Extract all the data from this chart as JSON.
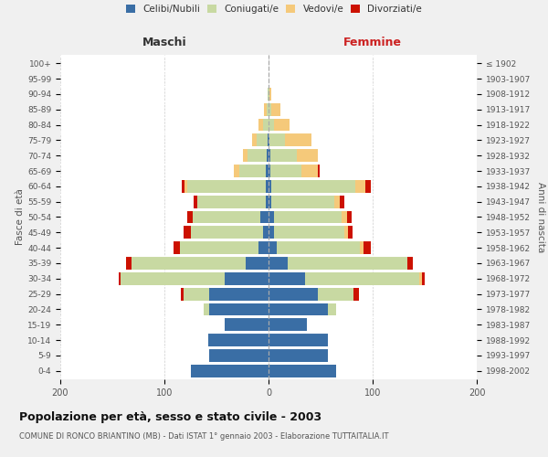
{
  "age_groups": [
    "0-4",
    "5-9",
    "10-14",
    "15-19",
    "20-24",
    "25-29",
    "30-34",
    "35-39",
    "40-44",
    "45-49",
    "50-54",
    "55-59",
    "60-64",
    "65-69",
    "70-74",
    "75-79",
    "80-84",
    "85-89",
    "90-94",
    "95-99",
    "100+"
  ],
  "birth_years": [
    "1998-2002",
    "1993-1997",
    "1988-1992",
    "1983-1987",
    "1978-1982",
    "1973-1977",
    "1968-1972",
    "1963-1967",
    "1958-1962",
    "1953-1957",
    "1948-1952",
    "1943-1947",
    "1938-1942",
    "1933-1937",
    "1928-1932",
    "1923-1927",
    "1918-1922",
    "1913-1917",
    "1908-1912",
    "1903-1907",
    "≤ 1902"
  ],
  "maschi": {
    "celibi": [
      75,
      57,
      58,
      42,
      57,
      57,
      42,
      22,
      10,
      5,
      8,
      3,
      3,
      3,
      2,
      1,
      0,
      0,
      0,
      0,
      0
    ],
    "coniugati": [
      0,
      0,
      0,
      0,
      5,
      25,
      100,
      110,
      75,
      70,
      65,
      65,
      75,
      25,
      18,
      10,
      5,
      2,
      1,
      0,
      0
    ],
    "vedovi": [
      0,
      0,
      0,
      0,
      0,
      0,
      0,
      0,
      0,
      0,
      0,
      0,
      3,
      5,
      5,
      5,
      5,
      2,
      0,
      0,
      0
    ],
    "divorziati": [
      0,
      0,
      0,
      0,
      0,
      2,
      2,
      5,
      6,
      7,
      5,
      4,
      2,
      0,
      0,
      0,
      0,
      0,
      0,
      0,
      0
    ]
  },
  "femmine": {
    "nubili": [
      65,
      57,
      57,
      37,
      57,
      47,
      35,
      18,
      8,
      5,
      5,
      3,
      3,
      2,
      2,
      1,
      0,
      0,
      0,
      0,
      0
    ],
    "coniugate": [
      0,
      0,
      0,
      0,
      8,
      35,
      110,
      115,
      80,
      68,
      65,
      60,
      80,
      30,
      25,
      15,
      5,
      3,
      1,
      0,
      0
    ],
    "vedove": [
      0,
      0,
      0,
      0,
      0,
      0,
      2,
      0,
      3,
      3,
      5,
      5,
      10,
      15,
      20,
      25,
      15,
      8,
      2,
      0,
      0
    ],
    "divorziate": [
      0,
      0,
      0,
      0,
      0,
      5,
      3,
      6,
      7,
      5,
      5,
      5,
      5,
      2,
      0,
      0,
      0,
      0,
      0,
      0,
      0
    ]
  },
  "color_celibi": "#3a6ea5",
  "color_coniugati": "#c8d9a2",
  "color_vedovi": "#f5c97a",
  "color_divorziati": "#cc1100",
  "title": "Popolazione per età, sesso e stato civile - 2003",
  "subtitle": "COMUNE DI RONCO BRIANTINO (MB) - Dati ISTAT 1° gennaio 2003 - Elaborazione TUTTAITALIA.IT",
  "label_maschi": "Maschi",
  "label_femmine": "Femmine",
  "ylabel_left": "Fasce di età",
  "ylabel_right": "Anni di nascita",
  "xlim": 200,
  "bg_color": "#f0f0f0",
  "plot_bg": "#ffffff"
}
